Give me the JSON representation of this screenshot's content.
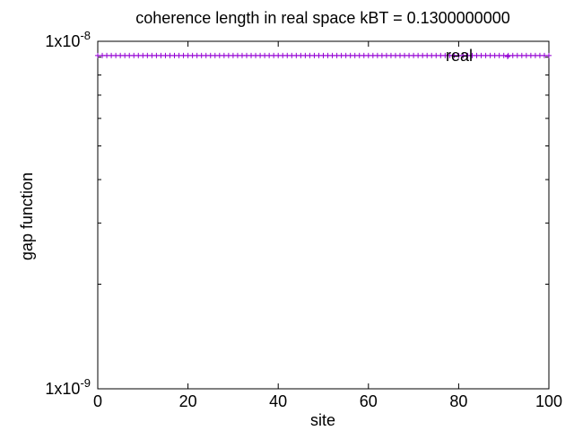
{
  "chart_data": {
    "type": "line",
    "title": "coherence length in real space kBT = 0.1300000000",
    "xlabel": "site",
    "ylabel": "gap function",
    "xlim": [
      0,
      100
    ],
    "ylim": [
      1e-09,
      1e-08
    ],
    "yscale": "log",
    "grid": false,
    "legend_position": "top-right",
    "x_ticks": [
      0,
      20,
      40,
      60,
      80,
      100
    ],
    "x_tick_labels": [
      "0",
      "20",
      "40",
      "60",
      "80",
      "100"
    ],
    "y_tick_labels": [
      {
        "value": 1e-09,
        "mantissa": "1x10",
        "exponent": "-9"
      },
      {
        "value": 1e-08,
        "mantissa": "1x10",
        "exponent": "-8"
      }
    ],
    "series": [
      {
        "name": "real",
        "color": "#9400d3",
        "marker": "+",
        "x_start": 0,
        "x_end": 100,
        "x_step": 1,
        "y_constant": 9.1e-09
      }
    ]
  }
}
